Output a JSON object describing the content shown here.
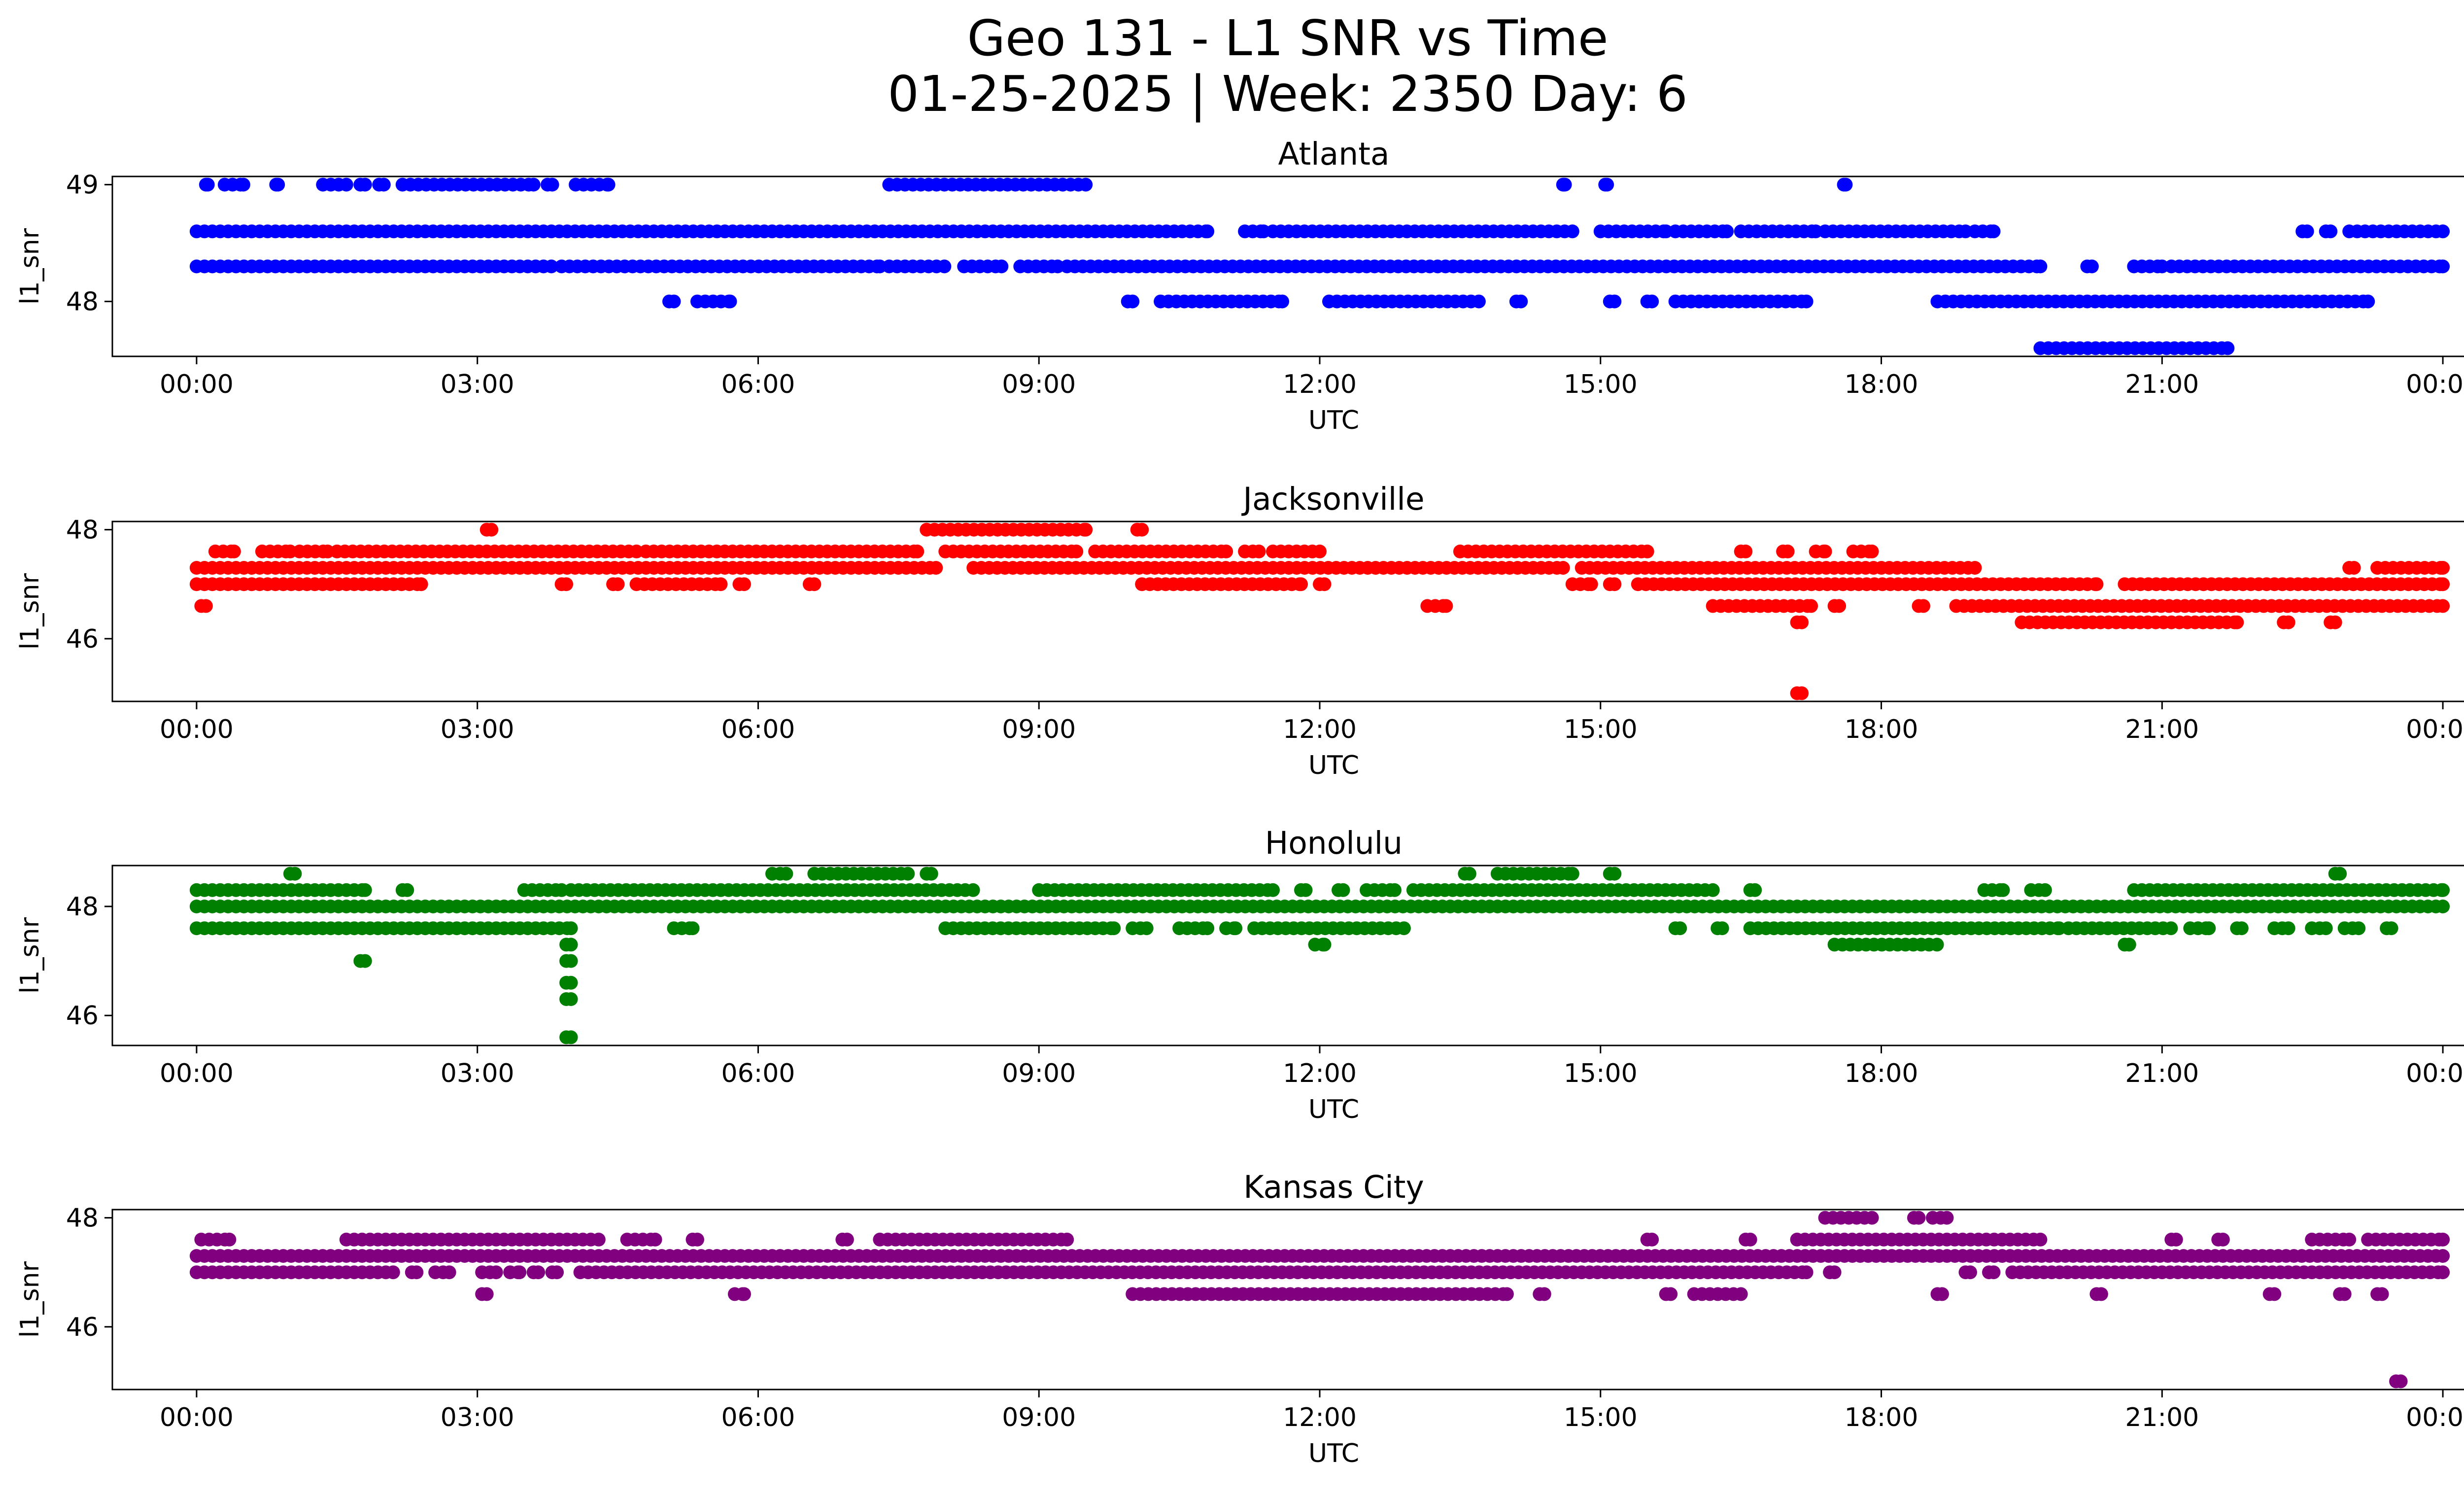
{
  "figure_title_line1": "Geo 131 - L1 SNR vs Time",
  "figure_title_line2": "01-25-2025 | Week: 2350 Day: 6",
  "chart_data": [
    {
      "type": "scatter",
      "title": "Atlanta",
      "xlabel": "UTC",
      "ylabel": "l1_snr",
      "color": "#0000ff",
      "x_unit": "hours UTC",
      "xlim": [
        -0.9,
        25.2
      ],
      "ylim": [
        47.53,
        49.07
      ],
      "xticks": [
        0,
        3,
        6,
        9,
        12,
        15,
        18,
        21,
        24
      ],
      "xtick_labels": [
        "00:00",
        "03:00",
        "06:00",
        "09:00",
        "12:00",
        "15:00",
        "18:00",
        "21:00",
        "00:00"
      ],
      "yticks": [
        48,
        49
      ],
      "ytick_labels": [
        "48",
        "49"
      ],
      "levels": [
        {
          "y": 49.0,
          "ranges": [
            [
              0.1,
              0.12
            ],
            [
              0.3,
              0.5
            ],
            [
              0.85,
              0.87
            ],
            [
              1.35,
              1.6
            ],
            [
              1.75,
              1.8
            ],
            [
              1.95,
              2.0
            ],
            [
              2.2,
              3.6
            ],
            [
              3.75,
              3.8
            ],
            [
              4.05,
              4.4
            ],
            [
              7.4,
              9.5
            ],
            [
              14.6,
              14.62
            ],
            [
              15.05,
              15.07
            ],
            [
              17.6,
              17.62
            ]
          ]
        },
        {
          "y": 48.6,
          "ranges": [
            [
              0,
              10.8
            ],
            [
              11.2,
              11.4
            ],
            [
              11.5,
              14.7
            ],
            [
              15.0,
              15.7
            ],
            [
              15.8,
              16.35
            ],
            [
              16.5,
              17.3
            ],
            [
              17.4,
              18.9
            ],
            [
              19.0,
              19.2
            ],
            [
              22.5,
              22.55
            ],
            [
              22.75,
              22.8
            ],
            [
              23.0,
              24
            ]
          ]
        },
        {
          "y": 48.3,
          "ranges": [
            [
              0,
              3.8
            ],
            [
              3.9,
              7.3
            ],
            [
              7.4,
              8.0
            ],
            [
              8.2,
              8.6
            ],
            [
              8.8,
              9.2
            ],
            [
              9.3,
              19.7
            ],
            [
              20.2,
              20.25
            ],
            [
              20.7,
              21.0
            ],
            [
              21.1,
              24
            ]
          ]
        },
        {
          "y": 48.0,
          "ranges": [
            [
              5.05,
              5.1
            ],
            [
              5.35,
              5.7
            ],
            [
              9.95,
              10.0
            ],
            [
              10.3,
              11.6
            ],
            [
              12.1,
              13.7
            ],
            [
              14.1,
              14.15
            ],
            [
              15.1,
              15.15
            ],
            [
              15.5,
              15.55
            ],
            [
              15.8,
              17.2
            ],
            [
              18.6,
              23.2
            ]
          ]
        },
        {
          "y": 47.6,
          "ranges": [
            [
              19.7,
              21.7
            ]
          ]
        }
      ]
    },
    {
      "type": "scatter",
      "title": "Jacksonville",
      "xlabel": "UTC",
      "ylabel": "l1_snr",
      "color": "#ff0000",
      "x_unit": "hours UTC",
      "xlim": [
        -0.9,
        25.2
      ],
      "ylim": [
        44.85,
        48.15
      ],
      "xticks": [
        0,
        3,
        6,
        9,
        12,
        15,
        18,
        21,
        24
      ],
      "xtick_labels": [
        "00:00",
        "03:00",
        "06:00",
        "09:00",
        "12:00",
        "15:00",
        "18:00",
        "21:00",
        "00:00"
      ],
      "yticks": [
        46,
        48
      ],
      "ytick_labels": [
        "46",
        "48"
      ],
      "levels": [
        {
          "y": 48.0,
          "ranges": [
            [
              3.1,
              3.15
            ],
            [
              7.8,
              9.5
            ],
            [
              10.05,
              10.1
            ]
          ]
        },
        {
          "y": 47.6,
          "ranges": [
            [
              0.2,
              0.4
            ],
            [
              0.7,
              1.0
            ],
            [
              1.1,
              1.4
            ],
            [
              1.5,
              4.7
            ],
            [
              4.8,
              7.7
            ],
            [
              8.0,
              9.4
            ],
            [
              9.6,
              11.0
            ],
            [
              11.2,
              11.35
            ],
            [
              11.5,
              12.0
            ],
            [
              13.5,
              15.5
            ],
            [
              16.5,
              16.55
            ],
            [
              16.95,
              17.0
            ],
            [
              17.3,
              17.4
            ],
            [
              17.7,
              17.9
            ]
          ]
        },
        {
          "y": 47.3,
          "ranges": [
            [
              0,
              7.9
            ],
            [
              8.3,
              14.6
            ],
            [
              14.8,
              19.0
            ],
            [
              23.0,
              23.05
            ],
            [
              23.3,
              24
            ]
          ]
        },
        {
          "y": 47.0,
          "ranges": [
            [
              0,
              2.4
            ],
            [
              3.9,
              3.95
            ],
            [
              4.45,
              4.5
            ],
            [
              4.7,
              5.6
            ],
            [
              5.8,
              5.85
            ],
            [
              6.55,
              6.6
            ],
            [
              10.1,
              11.8
            ],
            [
              12.0,
              12.05
            ],
            [
              14.7,
              14.9
            ],
            [
              15.1,
              15.15
            ],
            [
              15.4,
              20.3
            ],
            [
              20.6,
              24
            ]
          ]
        },
        {
          "y": 46.6,
          "ranges": [
            [
              0.05,
              0.1
            ],
            [
              13.15,
              13.35
            ],
            [
              16.2,
              17.25
            ],
            [
              17.5,
              17.55
            ],
            [
              18.4,
              18.45
            ],
            [
              18.8,
              24
            ]
          ]
        },
        {
          "y": 46.3,
          "ranges": [
            [
              17.1,
              17.15
            ],
            [
              19.5,
              21.8
            ],
            [
              22.3,
              22.35
            ],
            [
              22.8,
              22.85
            ]
          ]
        },
        {
          "y": 45.0,
          "ranges": [
            [
              17.1,
              17.15
            ]
          ]
        }
      ]
    },
    {
      "type": "scatter",
      "title": "Honolulu",
      "xlabel": "UTC",
      "ylabel": "l1_snr",
      "color": "#008000",
      "x_unit": "hours UTC",
      "xlim": [
        -0.9,
        25.2
      ],
      "ylim": [
        45.45,
        48.75
      ],
      "xticks": [
        0,
        3,
        6,
        9,
        12,
        15,
        18,
        21,
        24
      ],
      "xtick_labels": [
        "00:00",
        "03:00",
        "06:00",
        "09:00",
        "12:00",
        "15:00",
        "18:00",
        "21:00",
        "00:00"
      ],
      "yticks": [
        46,
        48
      ],
      "ytick_labels": [
        "46",
        "48"
      ],
      "levels": [
        {
          "y": 48.6,
          "ranges": [
            [
              1.0,
              1.05
            ],
            [
              6.15,
              6.3
            ],
            [
              6.6,
              7.6
            ],
            [
              7.8,
              7.85
            ],
            [
              13.55,
              13.6
            ],
            [
              13.9,
              14.7
            ],
            [
              15.1,
              15.15
            ],
            [
              22.85,
              22.9
            ]
          ]
        },
        {
          "y": 48.3,
          "ranges": [
            [
              0,
              1.8
            ],
            [
              2.2,
              2.25
            ],
            [
              3.5,
              3.9
            ],
            [
              4.0,
              8.3
            ],
            [
              9.0,
              11.5
            ],
            [
              11.8,
              11.85
            ],
            [
              12.2,
              12.25
            ],
            [
              12.5,
              12.8
            ],
            [
              13.0,
              16.2
            ],
            [
              16.6,
              16.65
            ],
            [
              19.1,
              19.3
            ],
            [
              19.6,
              19.75
            ],
            [
              20.7,
              24
            ]
          ]
        },
        {
          "y": 48.0,
          "ranges": [
            [
              0,
              24
            ]
          ]
        },
        {
          "y": 47.6,
          "ranges": [
            [
              0,
              4.0
            ],
            [
              5.1,
              5.3
            ],
            [
              8.0,
              9.8
            ],
            [
              10.0,
              10.15
            ],
            [
              10.5,
              10.8
            ],
            [
              11.0,
              11.1
            ],
            [
              11.3,
              12.9
            ],
            [
              15.8,
              15.85
            ],
            [
              16.25,
              16.3
            ],
            [
              16.6,
              19.9
            ],
            [
              20.0,
              21.1
            ],
            [
              21.3,
              21.5
            ],
            [
              21.8,
              21.85
            ],
            [
              22.2,
              22.35
            ],
            [
              22.6,
              22.75
            ],
            [
              22.95,
              23.1
            ],
            [
              23.4,
              23.45
            ]
          ]
        },
        {
          "y": 47.3,
          "ranges": [
            [
              3.95,
              4.0
            ],
            [
              11.95,
              12.05
            ],
            [
              17.5,
              18.6
            ],
            [
              20.6,
              20.65
            ]
          ]
        },
        {
          "y": 47.0,
          "ranges": [
            [
              1.75,
              1.8
            ],
            [
              3.95,
              4.0
            ]
          ]
        },
        {
          "y": 46.6,
          "ranges": [
            [
              3.95,
              4.0
            ]
          ]
        },
        {
          "y": 46.3,
          "ranges": [
            [
              3.95,
              4.0
            ]
          ]
        },
        {
          "y": 45.6,
          "ranges": [
            [
              3.95,
              4.0
            ]
          ]
        }
      ]
    },
    {
      "type": "scatter",
      "title": "Kansas City",
      "xlabel": "UTC",
      "ylabel": "l1_snr",
      "color": "#800080",
      "x_unit": "hours UTC",
      "xlim": [
        -0.9,
        25.2
      ],
      "ylim": [
        44.85,
        48.15
      ],
      "xticks": [
        0,
        3,
        6,
        9,
        12,
        15,
        18,
        21,
        24
      ],
      "xtick_labels": [
        "00:00",
        "03:00",
        "06:00",
        "09:00",
        "12:00",
        "15:00",
        "18:00",
        "21:00",
        "00:00"
      ],
      "yticks": [
        46,
        48
      ],
      "ytick_labels": [
        "46",
        "48"
      ],
      "levels": [
        {
          "y": 48.0,
          "ranges": [
            [
              17.4,
              17.9
            ],
            [
              18.35,
              18.4
            ],
            [
              18.55,
              18.7
            ]
          ]
        },
        {
          "y": 47.6,
          "ranges": [
            [
              0.05,
              0.35
            ],
            [
              1.6,
              4.3
            ],
            [
              4.6,
              4.9
            ],
            [
              5.3,
              5.35
            ],
            [
              6.9,
              6.95
            ],
            [
              7.3,
              9.3
            ],
            [
              15.5,
              15.55
            ],
            [
              16.55,
              16.6
            ],
            [
              17.1,
              19.7
            ],
            [
              21.1,
              21.15
            ],
            [
              21.6,
              21.65
            ],
            [
              22.6,
              23.0
            ],
            [
              23.2,
              24
            ]
          ]
        },
        {
          "y": 47.3,
          "ranges": [
            [
              0,
              24
            ]
          ]
        },
        {
          "y": 47.0,
          "ranges": [
            [
              0,
              2.1
            ],
            [
              2.3,
              2.35
            ],
            [
              2.55,
              2.7
            ],
            [
              3.05,
              3.2
            ],
            [
              3.35,
              3.45
            ],
            [
              3.6,
              3.65
            ],
            [
              3.8,
              3.85
            ],
            [
              4.1,
              17.2
            ],
            [
              17.45,
              17.5
            ],
            [
              18.9,
              18.95
            ],
            [
              19.15,
              19.2
            ],
            [
              19.4,
              24
            ]
          ]
        },
        {
          "y": 46.6,
          "ranges": [
            [
              3.05,
              3.1
            ],
            [
              5.75,
              5.85
            ],
            [
              10.0,
              14.0
            ],
            [
              14.35,
              14.4
            ],
            [
              15.7,
              15.75
            ],
            [
              16.0,
              16.5
            ],
            [
              18.6,
              18.65
            ],
            [
              20.3,
              20.35
            ],
            [
              22.15,
              22.2
            ],
            [
              22.9,
              22.95
            ],
            [
              23.3,
              23.35
            ]
          ]
        },
        {
          "y": 45.0,
          "ranges": [
            [
              23.5,
              23.55
            ]
          ]
        }
      ]
    }
  ]
}
